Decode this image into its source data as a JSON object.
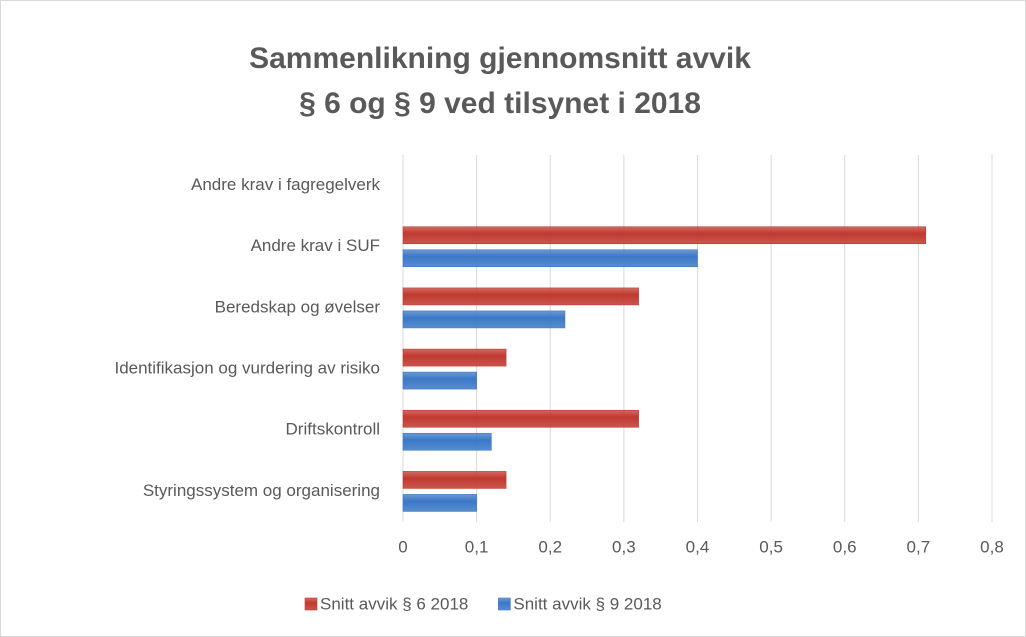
{
  "chart_data": {
    "type": "bar",
    "orientation": "horizontal",
    "title": [
      "Sammenlikning  gjennomsnitt avvik",
      "§ 6 og § 9 ved tilsynet i 2018"
    ],
    "categories": [
      "Andre krav i fagregelverk",
      "Andre krav i SUF",
      "Beredskap og øvelser",
      "Identifikasjon og vurdering av risiko",
      "Driftskontroll",
      "Styringssystem og organisering"
    ],
    "series": [
      {
        "name": "Snitt avvik § 6 2018",
        "color": "#c0392f",
        "values": [
          null,
          0.71,
          0.32,
          0.14,
          0.32,
          0.14
        ]
      },
      {
        "name": "Snitt avvik § 9 2018",
        "color": "#3b78c6",
        "values": [
          null,
          0.4,
          0.22,
          0.1,
          0.12,
          0.1
        ]
      }
    ],
    "xlim": [
      0,
      0.8
    ],
    "xticks": [
      0,
      {
        "value": 0.1,
        "label": "0,1"
      },
      {
        "value": 0.2,
        "label": "0,2"
      },
      {
        "value": 0.3,
        "label": "0,3"
      },
      {
        "value": 0.4,
        "label": "0,4"
      },
      {
        "value": 0.5,
        "label": "0,5"
      },
      {
        "value": 0.6,
        "label": "0,6"
      },
      {
        "value": 0.7,
        "label": "0,7"
      },
      {
        "value": 0.8,
        "label": "0,8"
      }
    ],
    "grid": true,
    "legend": "bottom"
  }
}
